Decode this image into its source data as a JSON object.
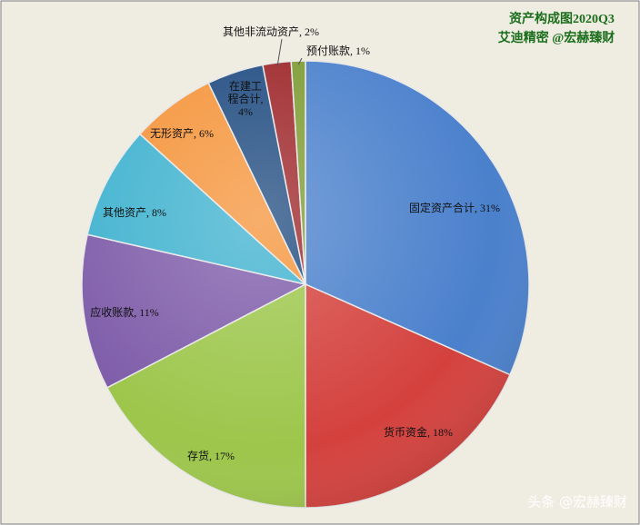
{
  "chart_data": {
    "type": "pie",
    "title": "资产构成图2020Q3",
    "subtitle": "艾迪精密 @宏赫臻财",
    "watermark": "头条 @宏赫臻财",
    "values": [
      31,
      18,
      17,
      11,
      8,
      6,
      4,
      2,
      1
    ],
    "value_labels": [
      "固定资产合计, 31%",
      "货币资金, 18%",
      "存货, 17%",
      "应收账款, 11%",
      "其他资产, 8%",
      "无形资产, 6%",
      "在建工程合计, 4%",
      "其他非流动资产, 2%",
      "预付账款, 1%"
    ],
    "colors": [
      "#4a80cc",
      "#d4413d",
      "#9dc64b",
      "#7e5ca9",
      "#3fb2cf",
      "#f5943a",
      "#1f4b80",
      "#9d2529",
      "#7d9b32"
    ]
  }
}
